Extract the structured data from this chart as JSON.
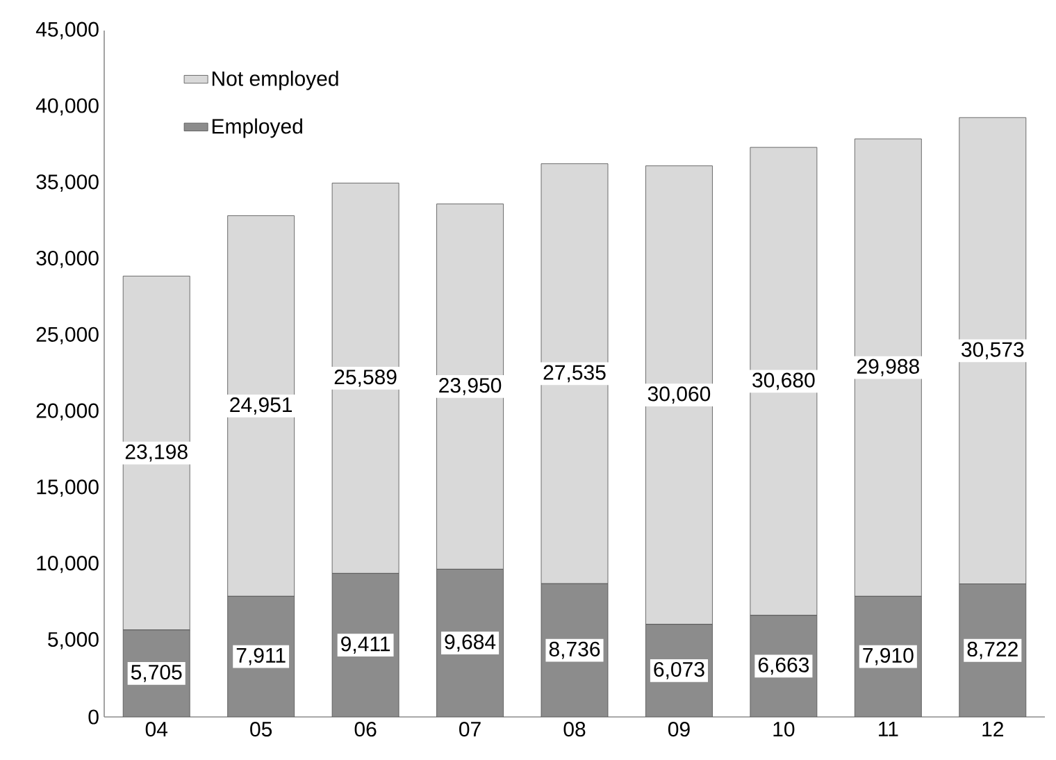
{
  "chart_data": {
    "type": "bar",
    "stacked": true,
    "categories": [
      "04",
      "05",
      "06",
      "07",
      "08",
      "09",
      "10",
      "11",
      "12"
    ],
    "series": [
      {
        "name": "Employed",
        "color": "#8c8c8c",
        "values": [
          5705,
          7911,
          9411,
          9684,
          8736,
          6073,
          6663,
          7910,
          8722
        ],
        "value_labels": [
          "5,705",
          "7,911",
          "9,411",
          "9,684",
          "8,736",
          "6,073",
          "6,663",
          "7,910",
          "8,722"
        ]
      },
      {
        "name": "Not employed",
        "color": "#d9d9d9",
        "values": [
          23198,
          24951,
          25589,
          23950,
          27535,
          30060,
          30680,
          29988,
          30573
        ],
        "value_labels": [
          "23,198",
          "24,951",
          "25,589",
          "23,950",
          "27,535",
          "30,060",
          "30,680",
          "29,988",
          "30,573"
        ]
      }
    ],
    "ylim": [
      0,
      45000
    ],
    "yticks": [
      0,
      {
        "value": 5000,
        "label": "5,000"
      },
      {
        "value": 10000,
        "label": "10,000"
      },
      {
        "value": 15000,
        "label": "15,000"
      },
      {
        "value": 20000,
        "label": "20,000"
      },
      {
        "value": 25000,
        "label": "25,000"
      },
      {
        "value": 30000,
        "label": "30,000"
      },
      {
        "value": 35000,
        "label": "35,000"
      },
      {
        "value": 40000,
        "label": "40,000"
      },
      {
        "value": 45000,
        "label": "45,000"
      }
    ],
    "legend": "top left"
  }
}
